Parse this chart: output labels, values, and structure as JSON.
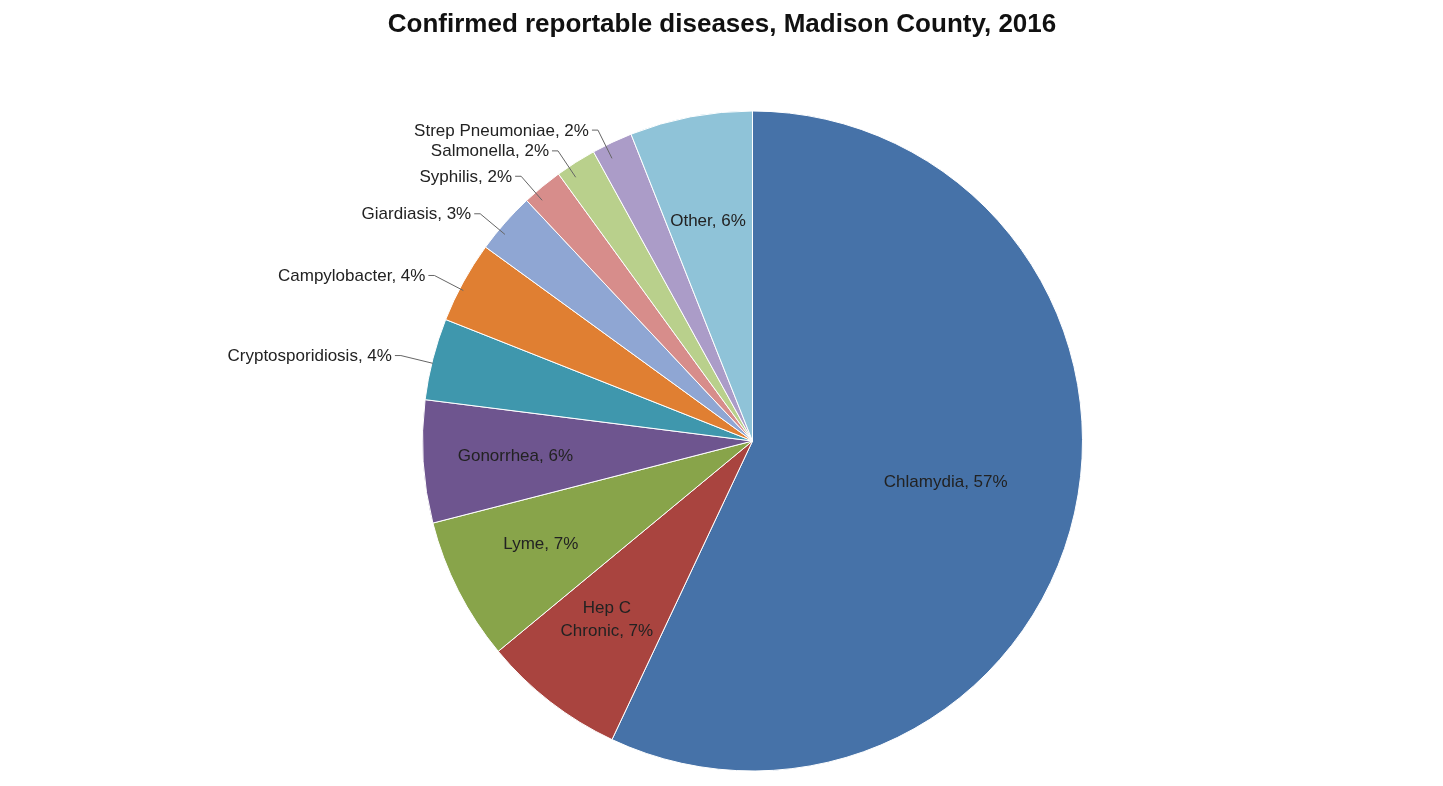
{
  "chart_data": {
    "type": "pie",
    "title": "Confirmed reportable diseases, Madison County, 2016",
    "categories": [
      "Chlamydia",
      "Hep C Chronic",
      "Lyme",
      "Gonorrhea",
      "Cryptosporidiosis",
      "Campylobacter",
      "Giardiasis",
      "Syphilis",
      "Salmonella",
      "Strep Pneumoniae",
      "Other"
    ],
    "values": [
      57,
      7,
      7,
      6,
      4,
      4,
      3,
      2,
      2,
      2,
      6
    ],
    "value_labels": [
      "57%",
      "7%",
      "7%",
      "6%",
      "4%",
      "4%",
      "3%",
      "2%",
      "2%",
      "2%",
      "6%"
    ],
    "colors": [
      "#4672a8",
      "#a9443f",
      "#88a44a",
      "#6e558f",
      "#3f97ad",
      "#e07f32",
      "#8fa6d3",
      "#d78d8b",
      "#b9d08c",
      "#ab9cc8",
      "#8fc3d8"
    ]
  }
}
